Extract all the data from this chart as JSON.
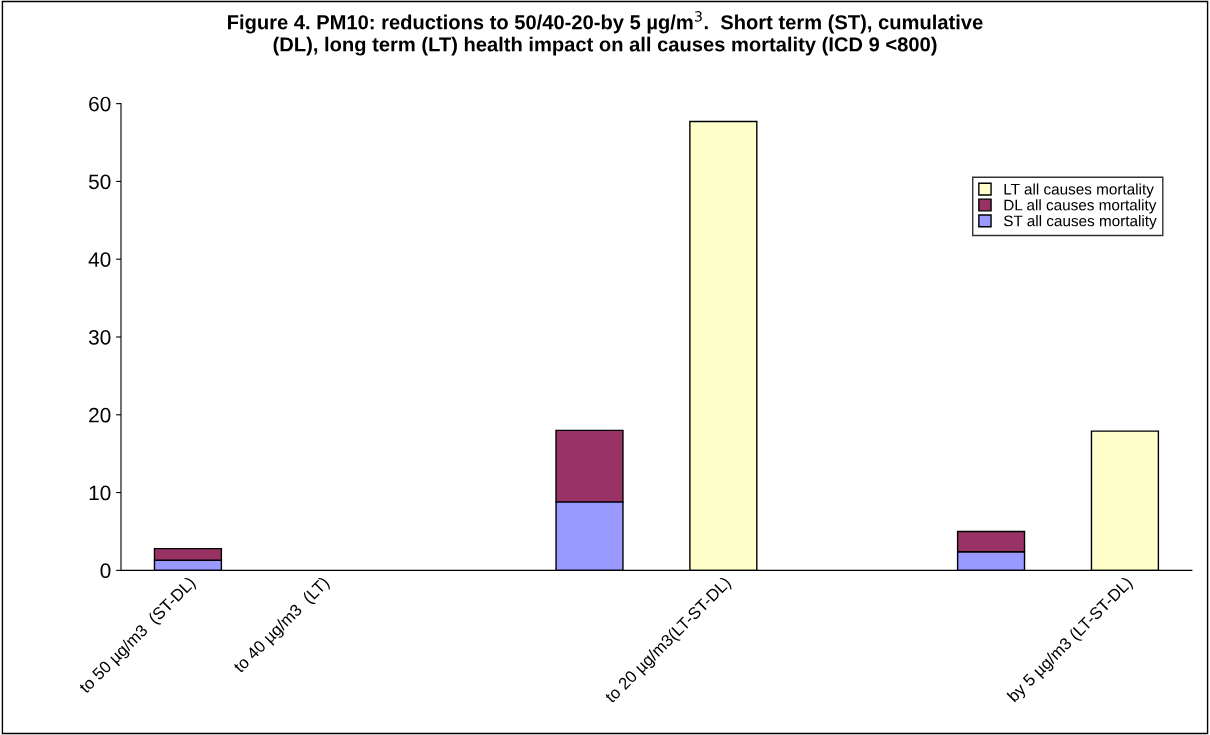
{
  "chart_data": {
    "type": "bar",
    "title": "Figure 4. PM10: reductions to 50/40-20-by 5 µg/m$^{3}$.  Short term (ST), cumulative\n(DL), long term (LT) health impact on all causes mortality (ICD 9 <800)",
    "categories": [
      "to 50 µg/m3  (ST-DL)",
      "to 40 µg/m3  (LT)",
      null,
      null,
      "to 20 µg/m3(LT-ST-DL)",
      null,
      null,
      "by 5 µg/m3 (LT-ST-DL)"
    ],
    "stacked": true,
    "series": [
      {
        "name": "ST all causes mortality",
        "color": "#9999ff",
        "values": [
          1.3,
          null,
          null,
          8.8,
          null,
          null,
          2.4,
          null
        ]
      },
      {
        "name": "DL all causes mortality",
        "color": "#993366",
        "values": [
          1.5,
          null,
          null,
          9.2,
          null,
          null,
          2.6,
          null
        ]
      },
      {
        "name": "LT all causes mortality",
        "color": "#ffffcc",
        "values": [
          null,
          null,
          null,
          null,
          57.7,
          null,
          null,
          17.9
        ]
      }
    ],
    "ylim": [
      0,
      60
    ],
    "yticks": [
      0,
      10,
      20,
      30,
      40,
      50,
      60
    ],
    "grid": false,
    "legend": "right"
  }
}
